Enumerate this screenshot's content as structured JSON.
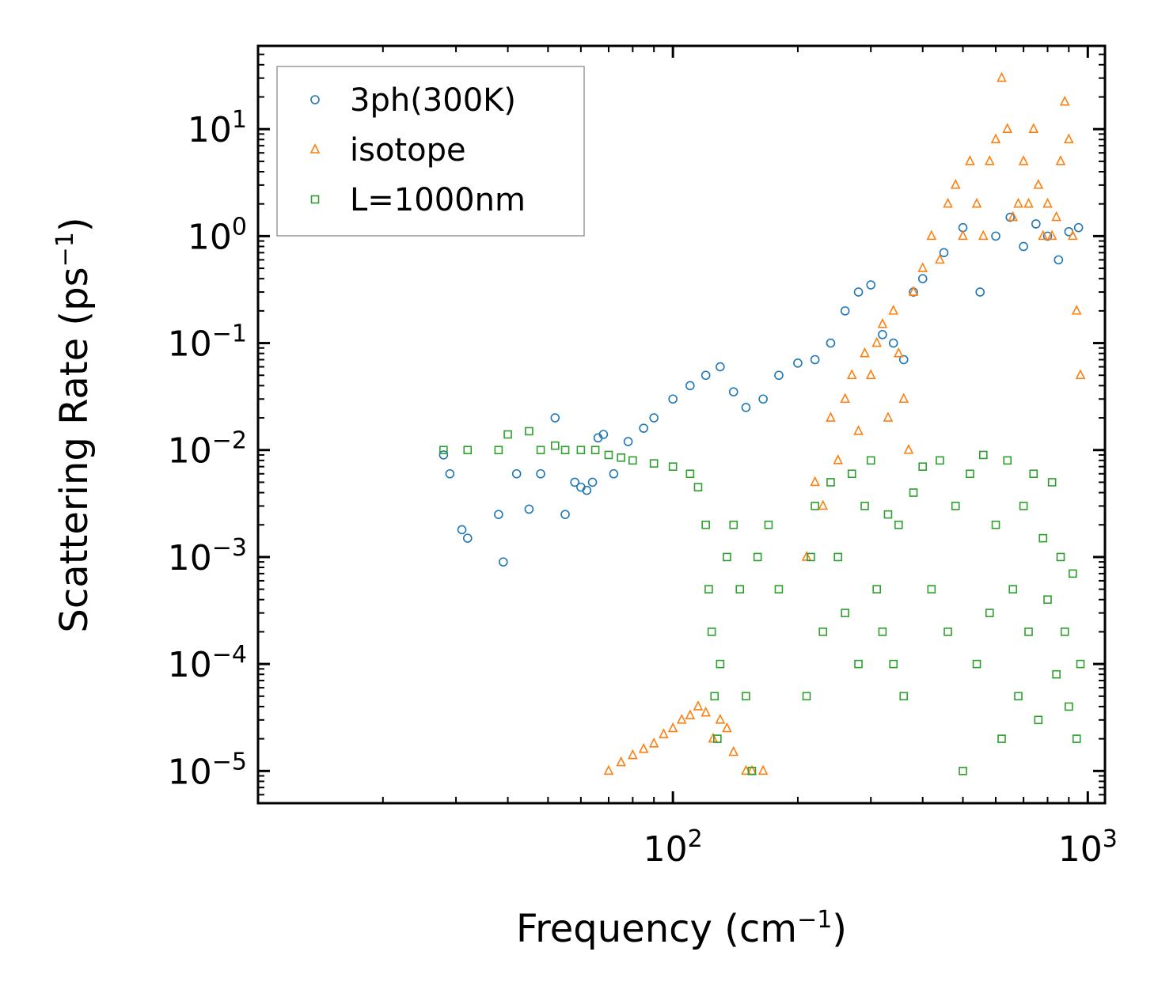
{
  "chart_data": {
    "type": "scatter",
    "xscale": "log",
    "yscale": "log",
    "xlim": [
      10,
      1100
    ],
    "ylim": [
      5e-06,
      60
    ],
    "xlabel": {
      "text": "Frequency (cm",
      "sup": "−1",
      "close": ")"
    },
    "ylabel": {
      "text": "Scattering Rate (ps",
      "sup": "−1",
      "close": ")"
    },
    "xticks": [
      {
        "value": 100,
        "base": "10",
        "exp": "2"
      },
      {
        "value": 1000,
        "base": "10",
        "exp": "3"
      }
    ],
    "yticks": [
      {
        "value": 1e-05,
        "base": "10",
        "exp": "−5"
      },
      {
        "value": 0.0001,
        "base": "10",
        "exp": "−4"
      },
      {
        "value": 0.001,
        "base": "10",
        "exp": "−3"
      },
      {
        "value": 0.01,
        "base": "10",
        "exp": "−2"
      },
      {
        "value": 0.1,
        "base": "10",
        "exp": "−1"
      },
      {
        "value": 1,
        "base": "10",
        "exp": "0"
      },
      {
        "value": 10,
        "base": "10",
        "exp": "1"
      }
    ],
    "legend_position": "top-left",
    "series": [
      {
        "name": "3ph(300K)",
        "marker": "circle",
        "color": "#1f77b4",
        "points": [
          [
            28,
            0.009
          ],
          [
            29,
            0.006
          ],
          [
            31,
            0.0018
          ],
          [
            32,
            0.0015
          ],
          [
            38,
            0.0025
          ],
          [
            39,
            0.0009
          ],
          [
            42,
            0.006
          ],
          [
            45,
            0.0028
          ],
          [
            48,
            0.006
          ],
          [
            52,
            0.02
          ],
          [
            55,
            0.0025
          ],
          [
            58,
            0.005
          ],
          [
            60,
            0.0045
          ],
          [
            62,
            0.0042
          ],
          [
            64,
            0.005
          ],
          [
            66,
            0.013
          ],
          [
            68,
            0.014
          ],
          [
            72,
            0.006
          ],
          [
            78,
            0.012
          ],
          [
            85,
            0.016
          ],
          [
            90,
            0.02
          ],
          [
            100,
            0.03
          ],
          [
            110,
            0.04
          ],
          [
            120,
            0.05
          ],
          [
            130,
            0.06
          ],
          [
            140,
            0.035
          ],
          [
            150,
            0.025
          ],
          [
            165,
            0.03
          ],
          [
            180,
            0.05
          ],
          [
            200,
            0.065
          ],
          [
            220,
            0.07
          ],
          [
            240,
            0.1
          ],
          [
            260,
            0.2
          ],
          [
            280,
            0.3
          ],
          [
            300,
            0.35
          ],
          [
            320,
            0.12
          ],
          [
            340,
            0.1
          ],
          [
            360,
            0.07
          ],
          [
            380,
            0.3
          ],
          [
            400,
            0.4
          ],
          [
            450,
            0.7
          ],
          [
            500,
            1.2
          ],
          [
            550,
            0.3
          ],
          [
            600,
            1.0
          ],
          [
            650,
            1.5
          ],
          [
            700,
            0.8
          ],
          [
            750,
            1.3
          ],
          [
            800,
            1.0
          ],
          [
            850,
            0.6
          ],
          [
            900,
            1.1
          ],
          [
            950,
            1.2
          ]
        ]
      },
      {
        "name": "isotope",
        "marker": "triangle",
        "color": "#ff7f0e",
        "points": [
          [
            70,
            1e-05
          ],
          [
            75,
            1.2e-05
          ],
          [
            80,
            1.4e-05
          ],
          [
            85,
            1.6e-05
          ],
          [
            90,
            1.8e-05
          ],
          [
            95,
            2.2e-05
          ],
          [
            100,
            2.5e-05
          ],
          [
            105,
            3e-05
          ],
          [
            110,
            3.3e-05
          ],
          [
            115,
            4e-05
          ],
          [
            120,
            3.5e-05
          ],
          [
            125,
            2e-05
          ],
          [
            130,
            3e-05
          ],
          [
            135,
            2.5e-05
          ],
          [
            140,
            1.5e-05
          ],
          [
            150,
            1e-05
          ],
          [
            155,
            1e-05
          ],
          [
            165,
            1e-05
          ],
          [
            210,
            0.001
          ],
          [
            220,
            0.005
          ],
          [
            230,
            0.003
          ],
          [
            240,
            0.02
          ],
          [
            250,
            0.008
          ],
          [
            260,
            0.03
          ],
          [
            270,
            0.05
          ],
          [
            280,
            0.015
          ],
          [
            290,
            0.08
          ],
          [
            300,
            0.05
          ],
          [
            310,
            0.1
          ],
          [
            320,
            0.15
          ],
          [
            330,
            0.02
          ],
          [
            340,
            0.2
          ],
          [
            350,
            0.08
          ],
          [
            360,
            0.03
          ],
          [
            370,
            0.01
          ],
          [
            380,
            0.3
          ],
          [
            400,
            0.5
          ],
          [
            420,
            1.0
          ],
          [
            440,
            0.6
          ],
          [
            460,
            2.0
          ],
          [
            480,
            3.0
          ],
          [
            500,
            1.0
          ],
          [
            520,
            5.0
          ],
          [
            540,
            2.0
          ],
          [
            560,
            1.0
          ],
          [
            580,
            5.0
          ],
          [
            600,
            8.0
          ],
          [
            620,
            30.0
          ],
          [
            640,
            10.0
          ],
          [
            660,
            1.5
          ],
          [
            680,
            2.0
          ],
          [
            700,
            5.0
          ],
          [
            720,
            2.0
          ],
          [
            740,
            10.0
          ],
          [
            760,
            3.0
          ],
          [
            780,
            1.0
          ],
          [
            800,
            2.0
          ],
          [
            820,
            1.0
          ],
          [
            840,
            1.5
          ],
          [
            860,
            5.0
          ],
          [
            880,
            18.0
          ],
          [
            900,
            8.0
          ],
          [
            920,
            1.0
          ],
          [
            940,
            0.2
          ],
          [
            960,
            0.05
          ]
        ]
      },
      {
        "name": "L=1000nm",
        "marker": "square",
        "color": "#2ca02c",
        "points": [
          [
            28,
            0.01
          ],
          [
            32,
            0.01
          ],
          [
            38,
            0.01
          ],
          [
            40,
            0.014
          ],
          [
            45,
            0.015
          ],
          [
            48,
            0.01
          ],
          [
            52,
            0.011
          ],
          [
            55,
            0.01
          ],
          [
            60,
            0.01
          ],
          [
            65,
            0.01
          ],
          [
            70,
            0.009
          ],
          [
            75,
            0.0085
          ],
          [
            80,
            0.008
          ],
          [
            90,
            0.0075
          ],
          [
            100,
            0.007
          ],
          [
            110,
            0.006
          ],
          [
            115,
            0.0045
          ],
          [
            120,
            0.002
          ],
          [
            122,
            0.0005
          ],
          [
            124,
            0.0002
          ],
          [
            126,
            5e-05
          ],
          [
            128,
            2e-05
          ],
          [
            130,
            0.0001
          ],
          [
            135,
            0.001
          ],
          [
            140,
            0.002
          ],
          [
            145,
            0.0005
          ],
          [
            150,
            5e-05
          ],
          [
            155,
            1e-05
          ],
          [
            160,
            0.001
          ],
          [
            170,
            0.002
          ],
          [
            180,
            0.0005
          ],
          [
            210,
            5e-05
          ],
          [
            215,
            0.001
          ],
          [
            220,
            0.003
          ],
          [
            230,
            0.0002
          ],
          [
            240,
            0.005
          ],
          [
            250,
            0.001
          ],
          [
            260,
            0.0003
          ],
          [
            270,
            0.006
          ],
          [
            280,
            0.0001
          ],
          [
            290,
            0.003
          ],
          [
            300,
            0.008
          ],
          [
            310,
            0.0005
          ],
          [
            320,
            0.0002
          ],
          [
            330,
            0.0025
          ],
          [
            340,
            0.0001
          ],
          [
            350,
            0.002
          ],
          [
            360,
            5e-05
          ],
          [
            380,
            0.004
          ],
          [
            400,
            0.007
          ],
          [
            420,
            0.0005
          ],
          [
            440,
            0.008
          ],
          [
            460,
            0.0002
          ],
          [
            480,
            0.003
          ],
          [
            500,
            1e-05
          ],
          [
            520,
            0.006
          ],
          [
            540,
            0.0001
          ],
          [
            560,
            0.009
          ],
          [
            580,
            0.0003
          ],
          [
            600,
            0.002
          ],
          [
            620,
            2e-05
          ],
          [
            640,
            0.008
          ],
          [
            660,
            0.0005
          ],
          [
            680,
            5e-05
          ],
          [
            700,
            0.003
          ],
          [
            720,
            0.0002
          ],
          [
            740,
            0.006
          ],
          [
            760,
            3e-05
          ],
          [
            780,
            0.0015
          ],
          [
            800,
            0.0004
          ],
          [
            820,
            0.005
          ],
          [
            840,
            8e-05
          ],
          [
            860,
            0.001
          ],
          [
            880,
            0.0002
          ],
          [
            900,
            4e-05
          ],
          [
            920,
            0.0007
          ],
          [
            940,
            2e-05
          ],
          [
            960,
            0.0001
          ]
        ]
      }
    ]
  }
}
